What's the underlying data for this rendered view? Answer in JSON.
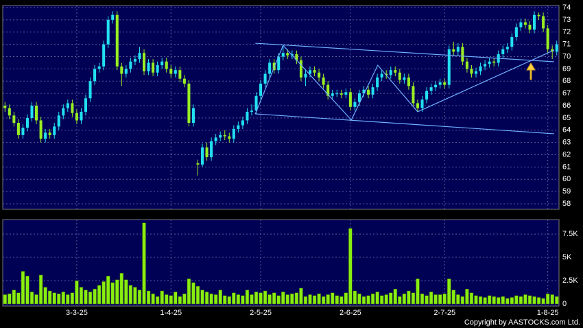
{
  "chart_data": [
    {
      "type": "candlestick",
      "up_color": "#22e0f0",
      "down_color": "#99ee22",
      "ylim": [
        57.55,
        74.17
      ],
      "yticks": [
        58,
        59,
        60,
        61,
        62,
        63,
        64,
        65,
        66,
        67,
        68,
        69,
        70,
        71,
        72,
        73,
        74
      ],
      "grid": true,
      "open": [
        66.0,
        65.8,
        65.2,
        64.6,
        63.6,
        64.2,
        65.0,
        66.0,
        64.8,
        63.3,
        63.8,
        63.6,
        64.3,
        65.2,
        65.8,
        66.2,
        65.4,
        64.8,
        65.5,
        66.6,
        68.0,
        69.0,
        69.2,
        71.0,
        73.0,
        73.4,
        69.2,
        68.6,
        69.0,
        69.6,
        69.8,
        70.3,
        68.8,
        69.5,
        68.7,
        69.3,
        69.6,
        69.0,
        68.6,
        68.9,
        68.2,
        67.8,
        64.6,
        61.3,
        61.2,
        62.6,
        61.8,
        63.1,
        63.4,
        63.6,
        63.5,
        63.3,
        64.1,
        64.4,
        64.8,
        65.5,
        65.6,
        66.8,
        67.8,
        68.6,
        69.5,
        68.9,
        70.0,
        70.3,
        70.1,
        70.2,
        69.7,
        68.3,
        68.6,
        68.9,
        68.7,
        68.3,
        67.7,
        66.8,
        67.0,
        67.0,
        66.9,
        67.1,
        65.9,
        66.3,
        67.0,
        67.3,
        66.9,
        67.5,
        68.3,
        68.6,
        68.5,
        68.9,
        68.7,
        68.1,
        68.3,
        67.6,
        66.2,
        65.8,
        66.5,
        67.2,
        67.5,
        67.7,
        67.9,
        67.7,
        70.6,
        70.4,
        70.8,
        69.6,
        69.0,
        68.6,
        68.8,
        69.2,
        69.4,
        69.6,
        69.5,
        70.2,
        70.6,
        70.8,
        71.6,
        72.4,
        72.8,
        72.6,
        72.2,
        73.4,
        73.3,
        72.3,
        70.6,
        70.4
      ],
      "high": [
        66.3,
        66.1,
        65.5,
        64.9,
        64.5,
        65.3,
        66.3,
        66.3,
        65.1,
        64.1,
        64.1,
        64.6,
        65.5,
        66.1,
        66.5,
        66.5,
        65.7,
        65.8,
        66.9,
        68.3,
        69.3,
        69.5,
        71.3,
        73.3,
        73.7,
        73.7,
        69.5,
        69.3,
        69.9,
        70.1,
        70.8,
        70.6,
        69.8,
        69.8,
        69.6,
        69.9,
        69.9,
        69.3,
        69.2,
        69.2,
        68.5,
        68.1,
        66.1,
        61.6,
        62.9,
        63.0,
        63.4,
        63.7,
        63.9,
        64.0,
        63.8,
        64.4,
        64.7,
        65.1,
        65.8,
        66.1,
        67.1,
        68.1,
        68.9,
        69.8,
        69.8,
        70.3,
        71.0,
        70.6,
        70.5,
        70.5,
        70.0,
        68.9,
        69.2,
        69.2,
        69.0,
        68.6,
        68.0,
        67.3,
        67.3,
        67.3,
        67.4,
        67.4,
        66.6,
        67.3,
        67.6,
        67.6,
        67.8,
        68.6,
        68.9,
        68.9,
        69.2,
        69.2,
        69.0,
        68.6,
        68.6,
        67.9,
        66.5,
        66.8,
        67.5,
        67.8,
        68.0,
        68.2,
        68.2,
        70.9,
        71.2,
        71.1,
        71.1,
        69.9,
        69.3,
        69.1,
        69.5,
        69.7,
        69.9,
        69.9,
        70.5,
        70.9,
        71.1,
        71.9,
        72.7,
        73.1,
        73.1,
        72.9,
        73.7,
        73.6,
        73.6,
        72.6,
        70.9,
        71.3
      ],
      "low": [
        65.5,
        64.9,
        64.3,
        63.3,
        63.3,
        63.9,
        64.7,
        64.5,
        63.0,
        63.0,
        63.3,
        63.3,
        64.0,
        64.9,
        65.5,
        65.1,
        64.5,
        64.5,
        65.2,
        66.3,
        67.7,
        68.7,
        68.9,
        70.7,
        72.7,
        68.9,
        67.6,
        68.3,
        68.7,
        69.3,
        69.5,
        68.5,
        68.5,
        68.4,
        68.4,
        69.0,
        68.7,
        68.3,
        68.3,
        67.9,
        67.5,
        64.3,
        64.3,
        60.3,
        61.0,
        61.5,
        61.5,
        62.8,
        63.1,
        63.2,
        63.0,
        63.0,
        63.8,
        64.1,
        64.5,
        65.2,
        65.3,
        66.5,
        67.5,
        68.3,
        68.6,
        68.6,
        69.7,
        69.8,
        69.8,
        69.4,
        68.0,
        67.6,
        68.3,
        68.4,
        68.0,
        67.4,
        66.5,
        66.5,
        66.7,
        66.6,
        66.6,
        65.6,
        65.6,
        66.0,
        66.7,
        66.6,
        66.6,
        67.2,
        68.0,
        68.2,
        68.2,
        68.4,
        67.8,
        67.8,
        67.3,
        65.9,
        65.5,
        65.5,
        66.2,
        66.9,
        67.2,
        67.4,
        67.4,
        67.4,
        70.1,
        70.1,
        69.3,
        68.7,
        68.3,
        68.3,
        68.5,
        68.9,
        69.1,
        69.2,
        69.2,
        69.9,
        70.3,
        70.5,
        71.3,
        72.1,
        72.3,
        71.9,
        71.9,
        73.0,
        72.0,
        70.3,
        69.8,
        70.1
      ],
      "close": [
        65.8,
        65.2,
        64.6,
        63.6,
        64.2,
        65.0,
        66.0,
        64.8,
        63.3,
        63.8,
        63.6,
        64.3,
        65.2,
        65.8,
        66.2,
        65.4,
        64.8,
        65.5,
        66.6,
        68.0,
        69.0,
        69.2,
        71.0,
        73.0,
        73.4,
        69.2,
        68.6,
        69.0,
        69.6,
        69.8,
        70.3,
        68.8,
        69.5,
        68.7,
        69.3,
        69.6,
        69.0,
        68.6,
        68.9,
        68.2,
        67.8,
        64.6,
        65.8,
        61.2,
        62.6,
        61.8,
        63.1,
        63.4,
        63.6,
        63.5,
        63.3,
        64.1,
        64.4,
        64.8,
        65.5,
        65.6,
        66.8,
        67.8,
        68.6,
        69.5,
        68.9,
        70.0,
        70.3,
        70.1,
        70.2,
        69.7,
        68.3,
        68.6,
        68.9,
        68.7,
        68.3,
        67.7,
        66.8,
        67.0,
        67.0,
        66.9,
        67.1,
        65.9,
        66.3,
        67.0,
        67.3,
        66.9,
        67.5,
        68.3,
        68.6,
        68.5,
        68.9,
        68.7,
        68.1,
        68.3,
        67.6,
        66.2,
        65.8,
        66.5,
        67.2,
        67.5,
        67.7,
        67.9,
        67.7,
        70.6,
        70.4,
        70.8,
        69.6,
        69.0,
        68.6,
        68.8,
        69.2,
        69.4,
        69.6,
        69.5,
        70.2,
        70.6,
        70.8,
        71.6,
        72.4,
        72.8,
        72.6,
        72.2,
        73.4,
        73.3,
        72.3,
        70.6,
        70.4,
        71.0
      ],
      "trendline_color": "#6fb0ff",
      "trendlines": [
        {
          "points": [
            [
              55.8,
              71.09
            ],
            [
              122.4,
              69.58
            ]
          ]
        },
        {
          "points": [
            [
              55.8,
              65.33
            ],
            [
              122.4,
              63.71
            ]
          ]
        },
        {
          "points": [
            [
              55.8,
              65.33
            ],
            [
              62.0,
              70.92
            ],
            [
              77.2,
              64.83
            ],
            [
              83.1,
              69.3
            ],
            [
              92.0,
              65.5
            ],
            [
              122.4,
              70.53
            ]
          ]
        }
      ]
    },
    {
      "type": "bar",
      "color": "#88ee11",
      "ylim": [
        0,
        9050
      ],
      "yticks": [
        0,
        {
          "value": 2500,
          "label": "2.5K"
        },
        {
          "value": 5000,
          "label": "5K"
        },
        {
          "value": 7500,
          "label": "7.5K"
        }
      ],
      "categories": [
        null,
        null,
        null,
        null,
        null,
        null,
        null,
        null,
        null,
        null,
        null,
        null,
        null,
        null,
        null,
        null,
        "3-3-25",
        null,
        null,
        null,
        null,
        null,
        null,
        null,
        null,
        null,
        null,
        null,
        null,
        null,
        null,
        null,
        null,
        null,
        null,
        null,
        null,
        "1-4-25",
        null,
        null,
        null,
        null,
        null,
        null,
        null,
        null,
        null,
        null,
        null,
        null,
        null,
        null,
        null,
        null,
        null,
        null,
        null,
        "2-5-25",
        null,
        null,
        null,
        null,
        null,
        null,
        null,
        null,
        null,
        null,
        null,
        null,
        null,
        null,
        null,
        null,
        null,
        null,
        null,
        "2-6-25",
        null,
        null,
        null,
        null,
        null,
        null,
        null,
        null,
        null,
        null,
        null,
        null,
        null,
        null,
        null,
        null,
        null,
        null,
        null,
        null,
        "2-7-25",
        null,
        null,
        null,
        null,
        null,
        null,
        null,
        null,
        null,
        null,
        null,
        null,
        null,
        null,
        null,
        null,
        null,
        null,
        null,
        null,
        null,
        null,
        "1-8-25",
        null,
        null
      ],
      "values": [
        1000,
        1100,
        1500,
        1200,
        3500,
        3000,
        1300,
        1000,
        3100,
        1800,
        1400,
        1200,
        1100,
        1300,
        1000,
        1200,
        2500,
        1800,
        1500,
        1300,
        1600,
        2000,
        2400,
        3000,
        2300,
        2600,
        3300,
        2600,
        2000,
        1800,
        1500,
        8700,
        1400,
        1100,
        800,
        1400,
        1000,
        900,
        1300,
        800,
        1100,
        2700,
        2300,
        1900,
        1500,
        1300,
        1100,
        1000,
        1500,
        900,
        800,
        1200,
        1000,
        900,
        1500,
        1000,
        1300,
        1200,
        1400,
        1000,
        1200,
        900,
        1300,
        1000,
        1100,
        1200,
        1700,
        800,
        1000,
        900,
        1100,
        800,
        1000,
        1200,
        900,
        800,
        1200,
        8100,
        1400,
        1100,
        800,
        900,
        1100,
        1300,
        900,
        1000,
        1200,
        1600,
        800,
        1100,
        1400,
        1200,
        2700,
        1100,
        900,
        1300,
        1000,
        1000,
        1100,
        2700,
        1500,
        1000,
        800,
        1600,
        1200,
        900,
        800,
        700,
        900,
        800,
        700,
        800,
        600,
        700,
        900,
        800,
        1000,
        900,
        800,
        700,
        600,
        1100,
        1000,
        800
      ]
    },
    {
      "type": "note",
      "text": "Copyright by AASTOCKS.com Ltd."
    }
  ]
}
